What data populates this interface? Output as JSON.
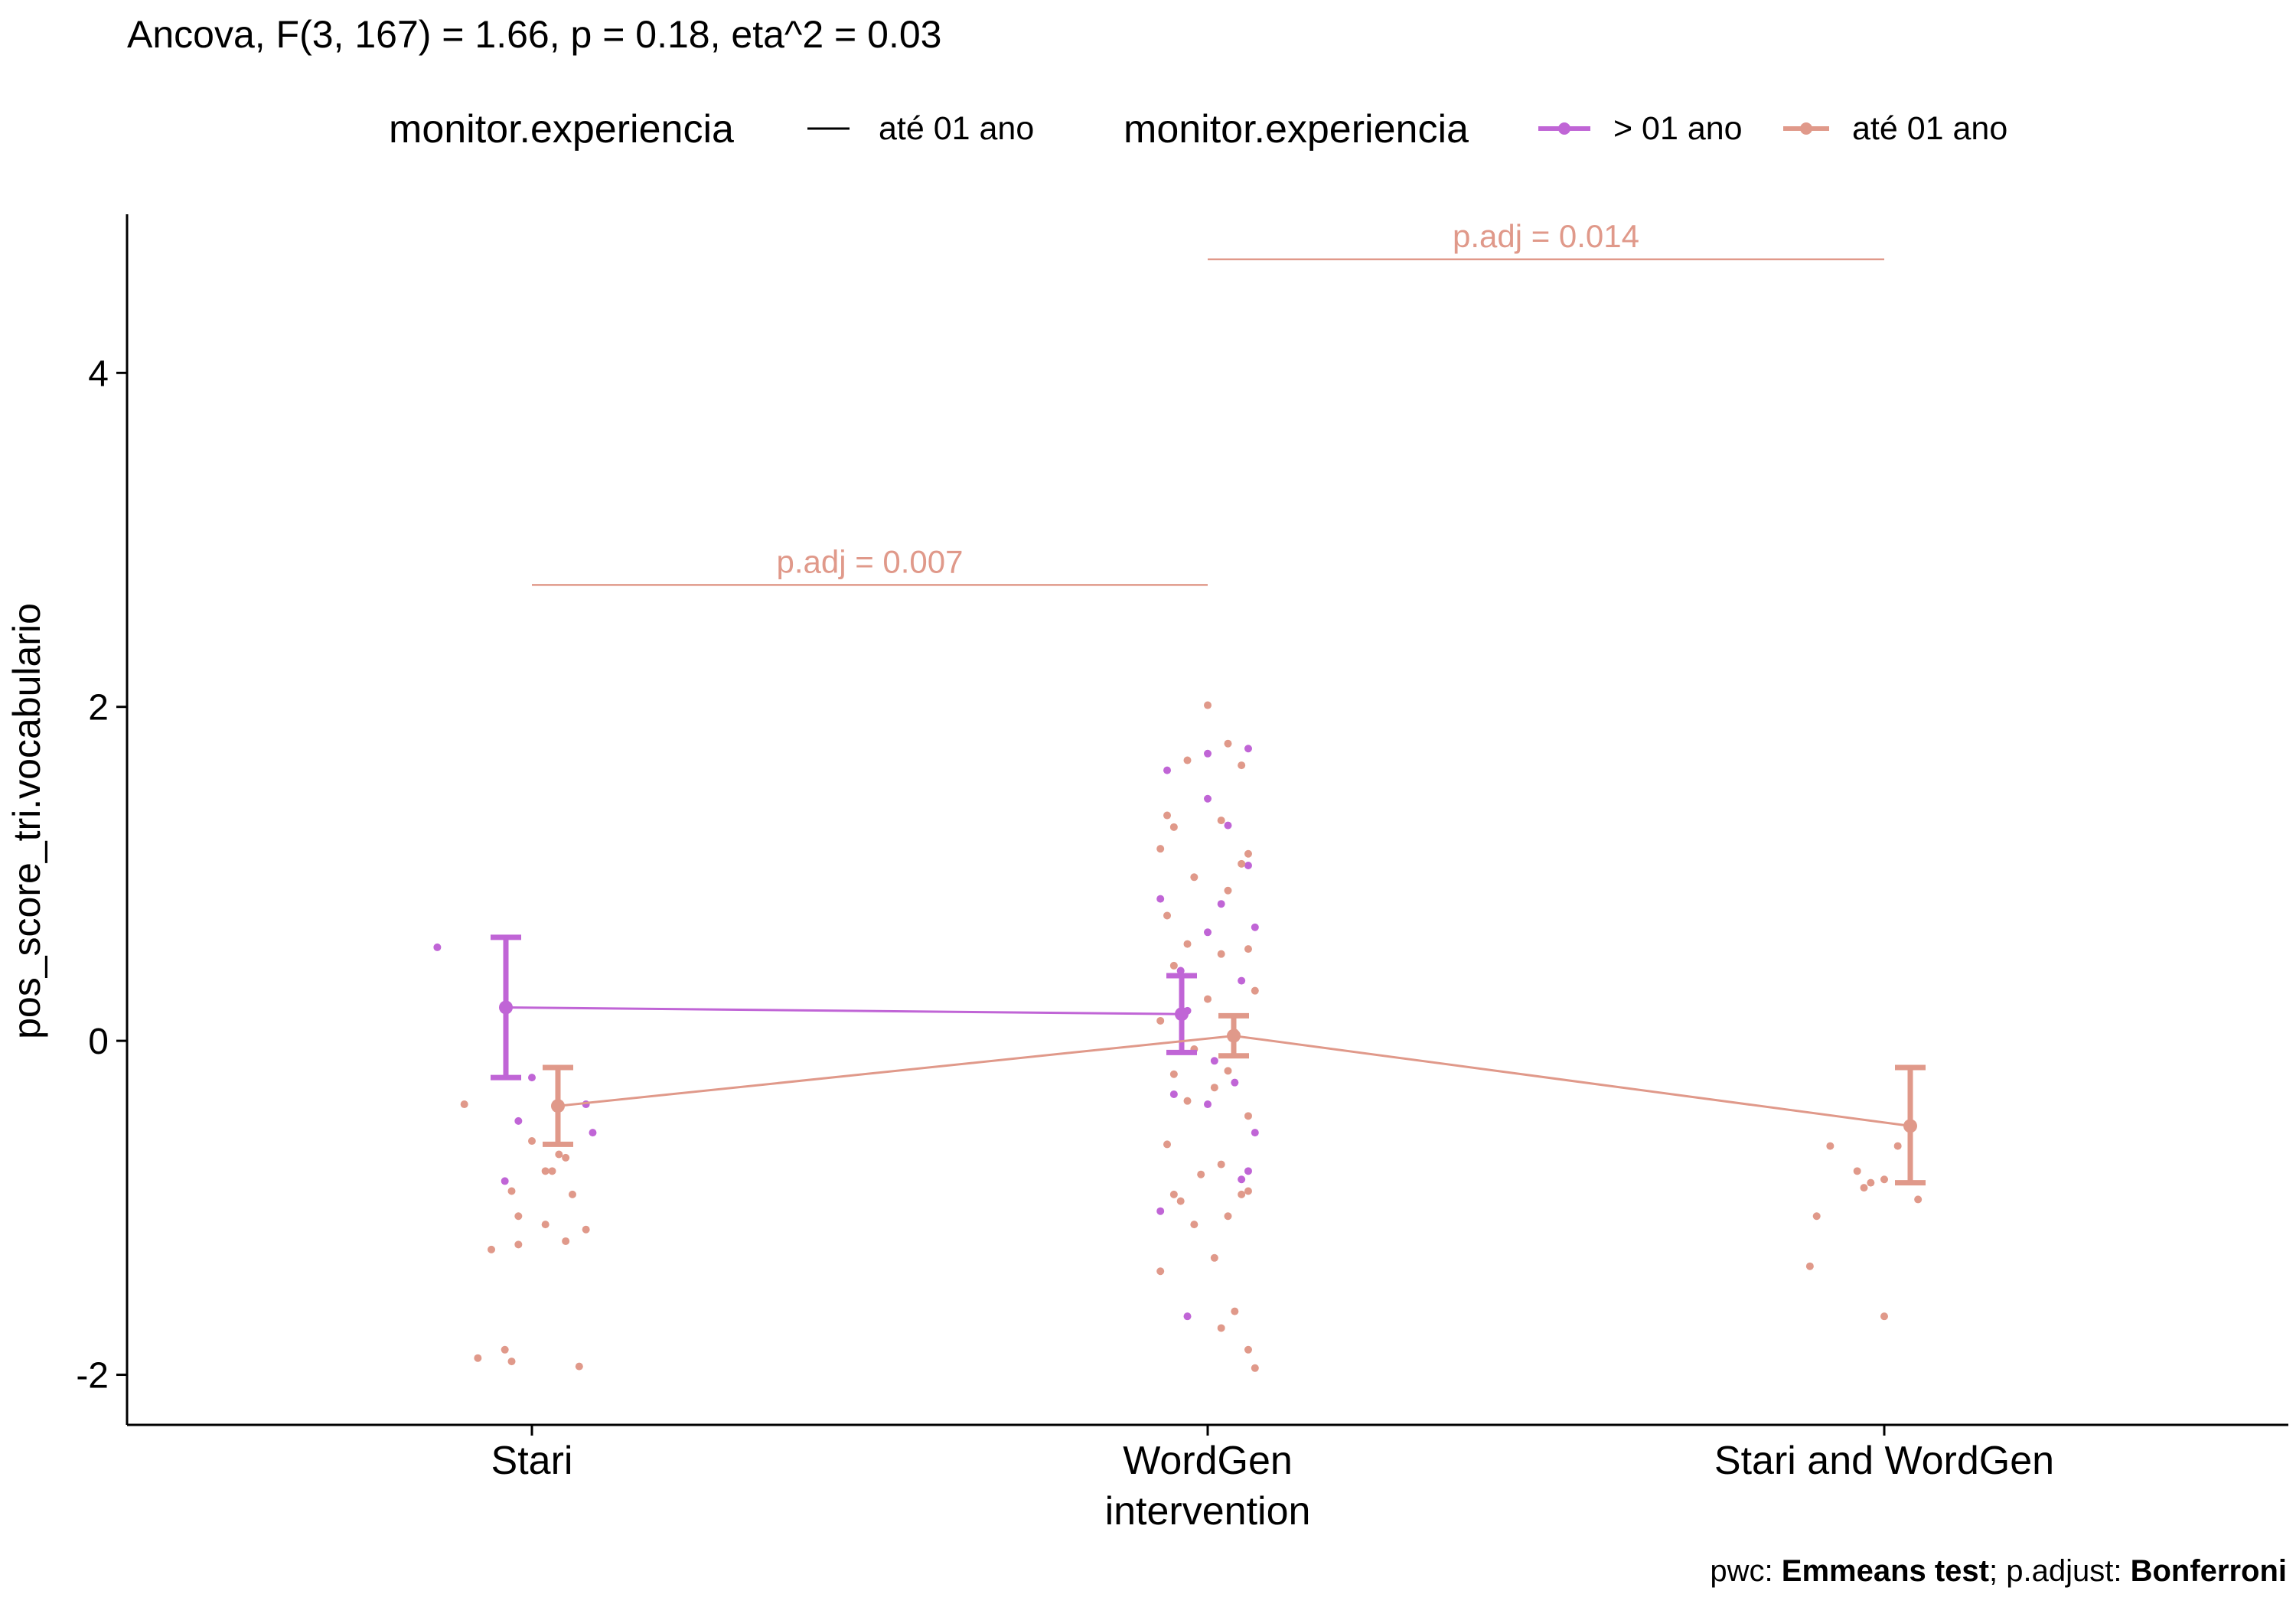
{
  "chart_data": {
    "type": "line",
    "title": "Ancova, F(3, 167) = 1.66, p = 0.18, eta^2 = 0.03",
    "ylabel": "pos_score_tri.vocabulario",
    "xlabel": "",
    "categories": [
      "Stari",
      "WordGen intervention",
      "Stari and WordGen"
    ],
    "category_lines": [
      [
        "Stari"
      ],
      [
        "WordGen",
        "intervention"
      ],
      [
        "Stari and WordGen"
      ]
    ],
    "ylim": [
      -2.3,
      4.95
    ],
    "yticks": [
      -2,
      0,
      2,
      4
    ],
    "ytick_labels": [
      "-2",
      "0",
      "2",
      "4"
    ],
    "grid": false,
    "legend_position": "top",
    "legend": {
      "title1": "monitor.experiencia",
      "entry1": "até 01 ano",
      "title2": "monitor.experiencia",
      "entries2": [
        "> 01 ano",
        "até 01 ano"
      ]
    },
    "caption": {
      "part1": "pwc: ",
      "part2": "Emmeans test",
      "part3": "; p.adjust: ",
      "part4": "Bonferroni"
    },
    "series": [
      {
        "name": "> 01 ano",
        "color": "#C065D6",
        "mean": [
          0.2,
          0.16,
          null
        ],
        "lower": [
          -0.22,
          -0.07,
          null
        ],
        "upper": [
          0.62,
          0.39,
          null
        ],
        "points": [
          [
            0,
            -0.14,
            0.56
          ],
          [
            0,
            0.0,
            -0.22
          ],
          [
            0,
            -0.02,
            -0.48
          ],
          [
            0,
            -0.04,
            -0.84
          ],
          [
            0,
            0.08,
            -0.38
          ],
          [
            0,
            0.09,
            -0.55
          ],
          [
            1,
            0.0,
            1.72
          ],
          [
            1,
            0.06,
            1.75
          ],
          [
            1,
            -0.06,
            1.62
          ],
          [
            1,
            0.0,
            1.45
          ],
          [
            1,
            0.03,
            1.29
          ],
          [
            1,
            0.06,
            1.05
          ],
          [
            1,
            -0.07,
            0.85
          ],
          [
            1,
            0.02,
            0.82
          ],
          [
            1,
            0.07,
            0.68
          ],
          [
            1,
            0.0,
            0.65
          ],
          [
            1,
            -0.04,
            0.42
          ],
          [
            1,
            0.05,
            0.36
          ],
          [
            1,
            -0.03,
            0.18
          ],
          [
            1,
            0.01,
            -0.12
          ],
          [
            1,
            0.04,
            -0.25
          ],
          [
            1,
            -0.05,
            -0.32
          ],
          [
            1,
            0.0,
            -0.38
          ],
          [
            1,
            0.07,
            -0.55
          ],
          [
            1,
            0.06,
            -0.78
          ],
          [
            1,
            0.05,
            -0.83
          ],
          [
            1,
            -0.07,
            -1.02
          ],
          [
            1,
            -0.03,
            -1.65
          ]
        ]
      },
      {
        "name": "até 01 ano",
        "color": "#E0998A",
        "mean": [
          -0.39,
          0.03,
          -0.51
        ],
        "lower": [
          -0.62,
          -0.09,
          -0.85
        ],
        "upper": [
          -0.16,
          0.15,
          -0.16
        ],
        "points": [
          [
            0,
            -0.1,
            -0.38
          ],
          [
            0,
            0.0,
            -0.6
          ],
          [
            0,
            -0.03,
            -0.9
          ],
          [
            0,
            0.02,
            -1.1
          ],
          [
            0,
            -0.06,
            -1.25
          ],
          [
            0,
            -0.04,
            -1.85
          ],
          [
            0,
            -0.02,
            -1.22
          ],
          [
            0,
            0.04,
            -0.68
          ],
          [
            0,
            0.06,
            -0.92
          ],
          [
            0,
            0.08,
            -1.13
          ],
          [
            0,
            0.05,
            -0.7
          ],
          [
            0,
            0.03,
            -0.78
          ],
          [
            0,
            -0.08,
            -1.9
          ],
          [
            0,
            0.07,
            -1.95
          ],
          [
            0,
            -0.03,
            -1.92
          ],
          [
            0,
            0.05,
            -1.2
          ],
          [
            0,
            0.02,
            -0.78
          ],
          [
            0,
            -0.02,
            -1.05
          ],
          [
            1,
            -0.06,
            1.35
          ],
          [
            1,
            0.03,
            1.78
          ],
          [
            1,
            -0.05,
            1.28
          ],
          [
            1,
            0.0,
            2.01
          ],
          [
            1,
            0.05,
            1.65
          ],
          [
            1,
            -0.03,
            1.68
          ],
          [
            1,
            0.02,
            1.32
          ],
          [
            1,
            0.06,
            1.12
          ],
          [
            1,
            -0.07,
            1.15
          ],
          [
            1,
            0.05,
            1.06
          ],
          [
            1,
            -0.02,
            0.98
          ],
          [
            1,
            0.03,
            0.9
          ],
          [
            1,
            -0.06,
            0.75
          ],
          [
            1,
            0.06,
            0.55
          ],
          [
            1,
            -0.03,
            0.58
          ],
          [
            1,
            0.02,
            0.52
          ],
          [
            1,
            -0.05,
            0.45
          ],
          [
            1,
            0.07,
            0.3
          ],
          [
            1,
            0.0,
            0.25
          ],
          [
            1,
            -0.07,
            0.12
          ],
          [
            1,
            0.04,
            0.05
          ],
          [
            1,
            -0.02,
            -0.05
          ],
          [
            1,
            0.03,
            -0.18
          ],
          [
            1,
            -0.05,
            -0.2
          ],
          [
            1,
            0.01,
            -0.28
          ],
          [
            1,
            -0.03,
            -0.36
          ],
          [
            1,
            0.06,
            -0.45
          ],
          [
            1,
            -0.06,
            -0.62
          ],
          [
            1,
            0.02,
            -0.74
          ],
          [
            1,
            -0.01,
            -0.8
          ],
          [
            1,
            0.05,
            -0.92
          ],
          [
            1,
            -0.04,
            -0.96
          ],
          [
            1,
            0.03,
            -1.05
          ],
          [
            1,
            -0.02,
            -1.1
          ],
          [
            1,
            0.06,
            -0.9
          ],
          [
            1,
            -0.07,
            -1.38
          ],
          [
            1,
            0.01,
            -1.3
          ],
          [
            1,
            0.02,
            -1.72
          ],
          [
            1,
            0.06,
            -1.85
          ],
          [
            1,
            0.07,
            -1.96
          ],
          [
            1,
            0.04,
            -1.62
          ],
          [
            1,
            -0.05,
            -0.92
          ],
          [
            2,
            -0.08,
            -0.63
          ],
          [
            2,
            -0.04,
            -0.78
          ],
          [
            2,
            -0.1,
            -1.05
          ],
          [
            2,
            -0.11,
            -1.35
          ],
          [
            2,
            -0.02,
            -0.85
          ],
          [
            2,
            0.0,
            -0.83
          ],
          [
            2,
            0.02,
            -0.63
          ],
          [
            2,
            0.05,
            -0.95
          ],
          [
            2,
            0.0,
            -1.65
          ],
          [
            2,
            -0.03,
            -0.88
          ]
        ]
      }
    ],
    "annotations": [
      {
        "label": "p.adj = 0.007",
        "x_from": 0,
        "x_to": 1,
        "y": 2.73,
        "color": "#E0998A"
      },
      {
        "label": "p.adj = 0.014",
        "x_from": 1,
        "x_to": 2,
        "y": 4.68,
        "color": "#E0998A"
      }
    ]
  }
}
